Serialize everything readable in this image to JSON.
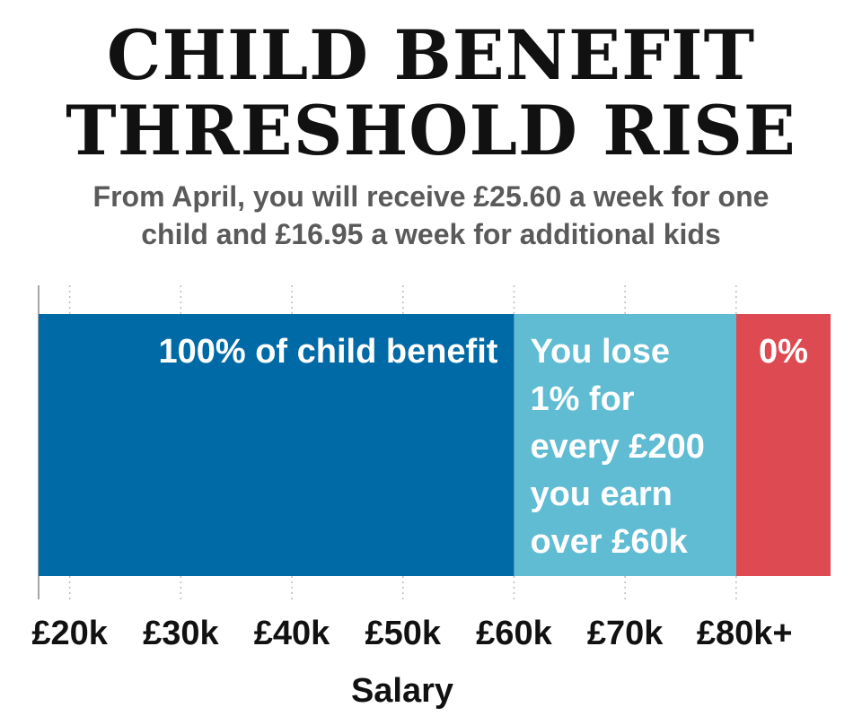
{
  "header": {
    "title_line1": "CHILD BENEFIT",
    "title_line2": "THRESHOLD RISE",
    "subtitle_line1": "From April, you will receive £25.60 a week for one",
    "subtitle_line2": "child and £16.95 a week for additional kids"
  },
  "chart_data": {
    "type": "bar",
    "orientation": "horizontal-stacked",
    "xlabel": "Salary",
    "x_ticks": [
      {
        "value": 20000,
        "label": "£20k"
      },
      {
        "value": 30000,
        "label": "£30k"
      },
      {
        "value": 40000,
        "label": "£40k"
      },
      {
        "value": 50000,
        "label": "£50k"
      },
      {
        "value": 60000,
        "label": "£60k"
      },
      {
        "value": 70000,
        "label": "£70k"
      },
      {
        "value": 80000,
        "label": "£80k+"
      }
    ],
    "xlim": [
      17200,
      88500
    ],
    "grid": true,
    "segments": [
      {
        "start": 17200,
        "end": 60000,
        "color": "#006aa6",
        "text_color": "#ffffff",
        "align": "right",
        "lines": [
          "100% of child benefit"
        ]
      },
      {
        "start": 60000,
        "end": 80000,
        "color": "#5fbcd3",
        "text_color": "#ffffff",
        "align": "left",
        "lines": [
          "You lose",
          "1% for",
          "every £200",
          "you earn",
          "over £60k"
        ]
      },
      {
        "start": 80000,
        "end": 88500,
        "color": "#de4a51",
        "text_color": "#ffffff",
        "align": "center",
        "lines": [
          "0%"
        ]
      }
    ]
  }
}
